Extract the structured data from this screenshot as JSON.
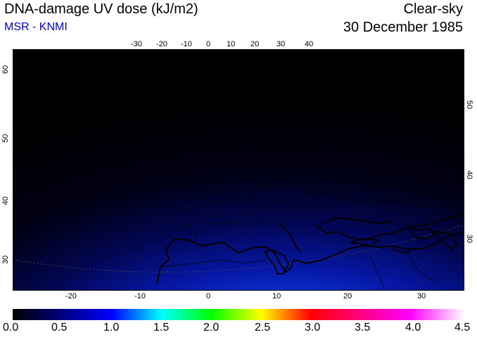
{
  "header": {
    "title": "DNA-damage UV dose (kJ/m2)",
    "subtitle": "MSR - KNMI",
    "condition": "Clear-sky",
    "date": "30 December 1985"
  },
  "map": {
    "top_lon_ticks": [
      "-30",
      "-20",
      "-10",
      "0",
      "10",
      "20",
      "30",
      "40"
    ],
    "bottom_lon_ticks": [
      "-20",
      "-10",
      "0",
      "10",
      "20",
      "30"
    ],
    "left_lat_ticks": [
      "60",
      "50",
      "40",
      "30"
    ],
    "right_lat_ticks": [
      "50",
      "40",
      "30"
    ]
  },
  "colorbar": {
    "labels": [
      "0.0",
      "0.5",
      "1.0",
      "1.5",
      "2.0",
      "2.5",
      "3.0",
      "3.5",
      "4.0",
      "4.5"
    ],
    "colors": [
      "#000000",
      "#0000ff",
      "#00ffff",
      "#00ff00",
      "#ffff00",
      "#ff0000",
      "#ff00ff",
      "#ffffff"
    ]
  }
}
